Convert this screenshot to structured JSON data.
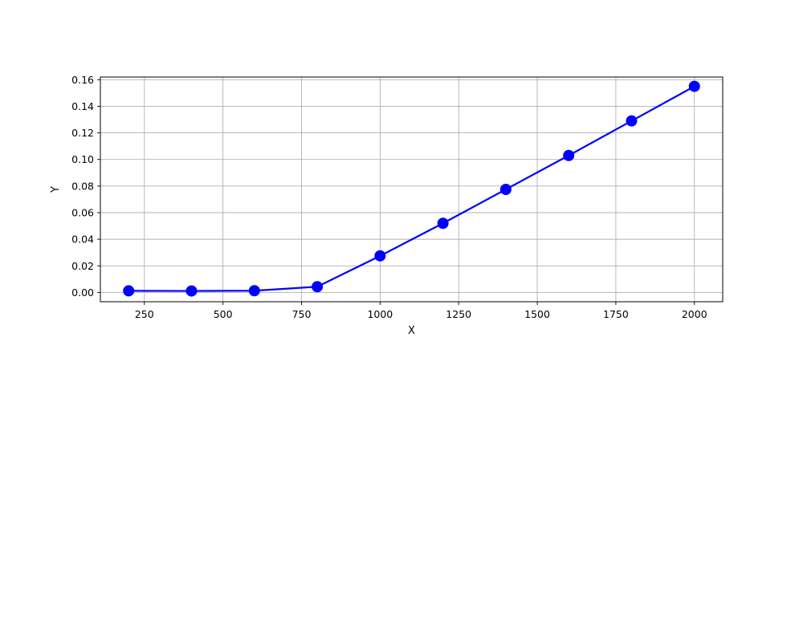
{
  "chart_data": {
    "type": "line",
    "title": "",
    "xlabel": "X",
    "ylabel": "Y",
    "xlim": [
      110,
      2090
    ],
    "ylim": [
      -0.007,
      0.162
    ],
    "x_ticks": [
      250,
      500,
      750,
      1000,
      1250,
      1500,
      1750,
      2000
    ],
    "x_tick_labels": [
      "250",
      "500",
      "750",
      "1000",
      "1250",
      "1500",
      "1750",
      "2000"
    ],
    "y_ticks": [
      0.0,
      0.02,
      0.04,
      0.06,
      0.08,
      0.1,
      0.12,
      0.14,
      0.16
    ],
    "y_tick_labels": [
      "0.00",
      "0.02",
      "0.04",
      "0.06",
      "0.08",
      "0.10",
      "0.12",
      "0.14",
      "0.16"
    ],
    "grid": true,
    "series": [
      {
        "x": [
          200,
          400,
          600,
          800,
          1000,
          1200,
          1400,
          1600,
          1800,
          2000
        ],
        "y": [
          0.0012,
          0.0011,
          0.0013,
          0.0043,
          0.0275,
          0.052,
          0.0775,
          0.103,
          0.129,
          0.155
        ],
        "color": "#0000ff",
        "marker": "circle"
      }
    ]
  }
}
